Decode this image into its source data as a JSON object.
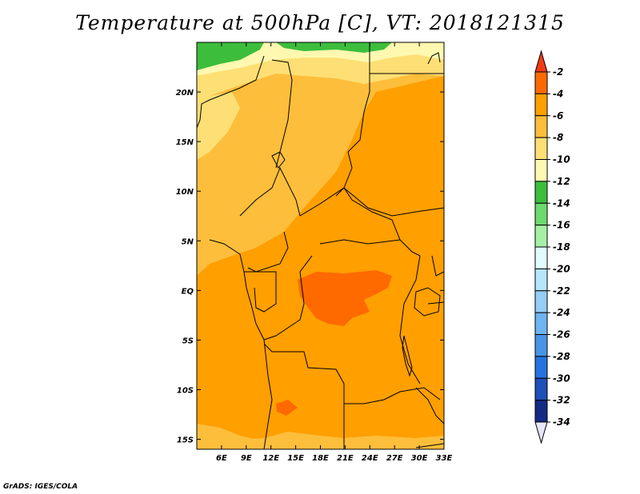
{
  "title": "Temperature at 500hPa [C], VT: 2018121315",
  "credit": "GrADS: IGES/COLA",
  "map": {
    "lon_range": [
      3,
      33
    ],
    "lat_range": [
      -16,
      25
    ],
    "lon_ticks": [
      {
        "lon": 6,
        "label": "6E"
      },
      {
        "lon": 9,
        "label": "9E"
      },
      {
        "lon": 12,
        "label": "12E"
      },
      {
        "lon": 15,
        "label": "15E"
      },
      {
        "lon": 18,
        "label": "18E"
      },
      {
        "lon": 21,
        "label": "21E"
      },
      {
        "lon": 24,
        "label": "24E"
      },
      {
        "lon": 27,
        "label": "27E"
      },
      {
        "lon": 30,
        "label": "30E"
      },
      {
        "lon": 33,
        "label": "33E"
      }
    ],
    "lat_ticks": [
      {
        "lat": 20,
        "label": "20N"
      },
      {
        "lat": 15,
        "label": "15N"
      },
      {
        "lat": 10,
        "label": "10N"
      },
      {
        "lat": 5,
        "label": "5N"
      },
      {
        "lat": 0,
        "label": "EQ"
      },
      {
        "lat": -5,
        "label": "5S"
      },
      {
        "lat": -10,
        "label": "10S"
      },
      {
        "lat": -15,
        "label": "15S"
      }
    ]
  },
  "colorbar": {
    "levels": [
      "-2",
      "-4",
      "-6",
      "-8",
      "-10",
      "-12",
      "-14",
      "-16",
      "-18",
      "-20",
      "-22",
      "-24",
      "-26",
      "-28",
      "-30",
      "-32",
      "-34"
    ],
    "colors": [
      "#f03c14",
      "#ff6a00",
      "#ff9f00",
      "#fdbe3b",
      "#fedf75",
      "#fff8b0",
      "#3cbe3c",
      "#6cda6c",
      "#a6f0a6",
      "#e2fcfe",
      "#b6e6fc",
      "#94cdf6",
      "#6eb4f0",
      "#4a94e8",
      "#2673e0",
      "#1d50b8",
      "#142a85",
      "#0f0f60",
      "#e6e6fa"
    ]
  },
  "colors": {
    "base": "#fdbe3b",
    "warm": "#ff9f00",
    "hot": "#ff6a00",
    "light": "#fedf75",
    "pale": "#fff8b0",
    "green": "#3cbe3c"
  }
}
